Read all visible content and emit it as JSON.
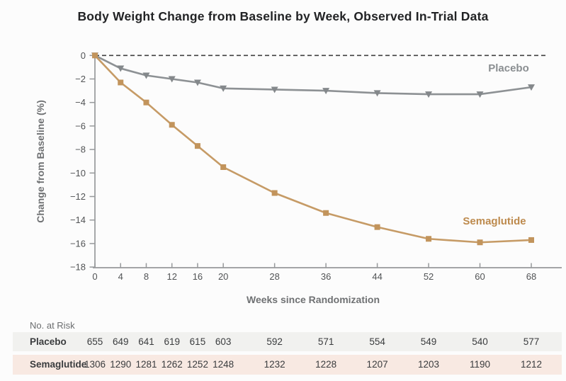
{
  "title": "Body Weight Change from Baseline by Week, Observed In-Trial Data",
  "chart_data": {
    "type": "line",
    "title": "Body Weight Change from Baseline by Week, Observed In-Trial Data",
    "xlabel": "Weeks since Randomization",
    "ylabel": "Change from Baseline (%)",
    "x": [
      0,
      4,
      8,
      12,
      16,
      20,
      28,
      36,
      44,
      52,
      60,
      68
    ],
    "xlim": [
      0,
      68
    ],
    "ylim": [
      -18,
      0
    ],
    "yticks": [
      0,
      -2,
      -4,
      -6,
      -8,
      -10,
      -12,
      -14,
      -16,
      -18
    ],
    "grid": false,
    "zero_reference_line": "dashed",
    "legend_position": "inline-labels",
    "series": [
      {
        "name": "Placebo",
        "marker": "triangle-down",
        "line_color": "#8D9194",
        "marker_color": "#84888B",
        "label_color": "#8A8E91",
        "label_anchor": {
          "x": 718,
          "y": 101
        },
        "values": [
          0,
          -1.1,
          -1.7,
          -2.0,
          -2.3,
          -2.8,
          -2.9,
          -3.0,
          -3.2,
          -3.3,
          -3.3,
          -2.7
        ]
      },
      {
        "name": "Semaglutide",
        "marker": "square",
        "line_color": "#C69B66",
        "marker_color": "#C2945C",
        "label_color": "#BD8A4D",
        "label_anchor": {
          "x": 698,
          "y": 317
        },
        "values": [
          0,
          -2.3,
          -4.0,
          -5.9,
          -7.7,
          -9.5,
          -11.7,
          -13.4,
          -14.6,
          -15.6,
          -15.9,
          -15.7
        ]
      }
    ]
  },
  "risk_table": {
    "header": "No. at Risk",
    "weeks": [
      0,
      4,
      8,
      12,
      16,
      20,
      28,
      36,
      44,
      52,
      60,
      68
    ],
    "rows": [
      {
        "label": "Placebo",
        "row_bg": "#F1F1EF",
        "values": [
          655,
          649,
          641,
          619,
          615,
          603,
          592,
          571,
          554,
          549,
          540,
          577
        ]
      },
      {
        "label": "Semaglutide",
        "row_bg": "#F8E9E2",
        "values": [
          1306,
          1290,
          1281,
          1262,
          1252,
          1248,
          1232,
          1228,
          1207,
          1203,
          1190,
          1212
        ]
      }
    ]
  },
  "colors": {
    "background": "#FCFCFC",
    "axis": "#97999B",
    "tick_text": "#515355",
    "zero_dash": "#404040",
    "title_text": "#222325"
  }
}
